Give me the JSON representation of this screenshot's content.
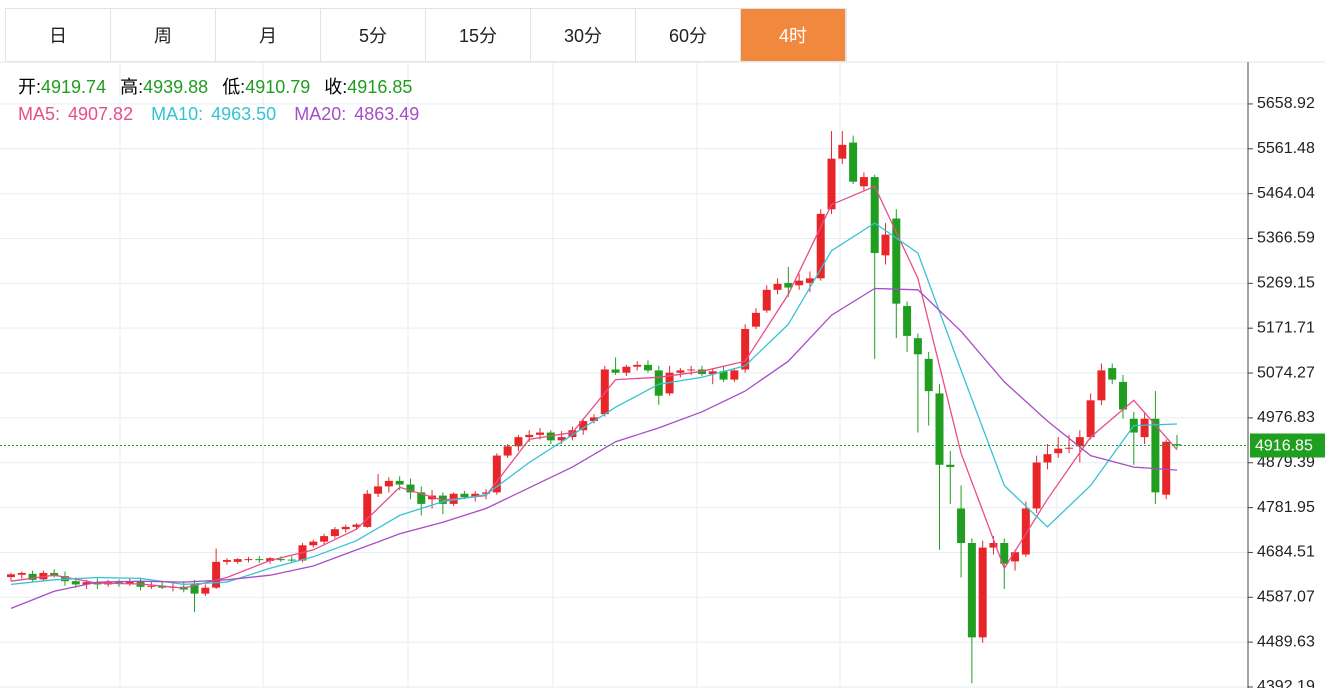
{
  "tabs": [
    "日",
    "周",
    "月",
    "5分",
    "15分",
    "30分",
    "60分",
    "4时"
  ],
  "chart_data": {
    "type": "candlestick",
    "ohlc_labels": [
      "开:",
      "高:",
      "低:",
      "收:"
    ],
    "up_color": "#e8262a",
    "down_color": "#1f9e1f",
    "open": [
      4631,
      4636,
      4638,
      4626,
      4640,
      4633,
      4622,
      4615,
      4620,
      4615,
      4620,
      4617,
      4622,
      4610,
      4612,
      4608,
      4610,
      4615,
      4595,
      4608,
      4664,
      4664,
      4668,
      4670,
      4666,
      4670,
      4669,
      4667,
      4700,
      4708,
      4720,
      4735,
      4740,
      4740,
      4812,
      4828,
      4840,
      4832,
      4815,
      4800,
      4808,
      4790,
      4812,
      4805,
      4812,
      4815,
      4895,
      4915,
      4935,
      4940,
      4945,
      4928,
      4935,
      4950,
      4970,
      4985,
      5082,
      5075,
      5088,
      5092,
      5080,
      5030,
      5075,
      5080,
      5082,
      5072,
      5078,
      5060,
      5082,
      5175,
      5210,
      5255,
      5270,
      5265,
      5270,
      5280,
      5430,
      5540,
      5575,
      5480,
      5500,
      5330,
      5410,
      5220,
      5150,
      5105,
      5030,
      4875,
      4780,
      4705,
      4500,
      4695,
      4705,
      4665,
      4680,
      4780,
      4880,
      4900,
      4910,
      4915,
      4935,
      5015,
      5085,
      5055,
      4975,
      4935,
      4975,
      4810,
      4919.74
    ],
    "high": [
      4640,
      4643,
      4645,
      4645,
      4648,
      4643,
      4630,
      4625,
      4628,
      4625,
      4626,
      4628,
      4630,
      4620,
      4620,
      4618,
      4622,
      4625,
      4615,
      4693,
      4672,
      4672,
      4675,
      4677,
      4674,
      4676,
      4676,
      4705,
      4712,
      4725,
      4740,
      4745,
      4748,
      4820,
      4855,
      4848,
      4850,
      4845,
      4828,
      4820,
      4815,
      4815,
      4818,
      4818,
      4822,
      4900,
      4920,
      4940,
      4950,
      4955,
      4950,
      4948,
      4958,
      4975,
      4985,
      5090,
      5108,
      5092,
      5100,
      5102,
      5090,
      5090,
      5085,
      5090,
      5090,
      5085,
      5090,
      5085,
      5180,
      5215,
      5265,
      5280,
      5305,
      5290,
      5295,
      5430,
      5600,
      5600,
      5590,
      5510,
      5505,
      5400,
      5430,
      5230,
      5160,
      5120,
      5050,
      4905,
      4830,
      4715,
      4710,
      4720,
      4715,
      4690,
      4795,
      4895,
      4920,
      4935,
      4940,
      4950,
      5030,
      5095,
      5095,
      5070,
      4990,
      4990,
      5035,
      4930,
      4939.88
    ],
    "low": [
      4622,
      4628,
      4620,
      4622,
      4630,
      4612,
      4608,
      4605,
      4605,
      4610,
      4610,
      4612,
      4602,
      4605,
      4605,
      4600,
      4598,
      4555,
      4590,
      4605,
      4658,
      4660,
      4663,
      4662,
      4660,
      4664,
      4662,
      4663,
      4695,
      4700,
      4715,
      4728,
      4734,
      4738,
      4805,
      4815,
      4820,
      4800,
      4765,
      4780,
      4768,
      4785,
      4800,
      4795,
      4800,
      4810,
      4890,
      4905,
      4925,
      4930,
      4920,
      4920,
      4928,
      4940,
      4965,
      4980,
      5070,
      5068,
      5080,
      5075,
      5005,
      5025,
      5065,
      5070,
      5068,
      5050,
      5055,
      5055,
      5075,
      5170,
      5205,
      5245,
      5240,
      5255,
      5250,
      5275,
      5420,
      5528,
      5485,
      5470,
      5105,
      5310,
      5150,
      5120,
      4945,
      4960,
      4690,
      4790,
      4630,
      4400,
      4488,
      4680,
      4605,
      4645,
      4675,
      4770,
      4865,
      4890,
      4900,
      4880,
      4930,
      5005,
      5050,
      4975,
      4875,
      4920,
      4790,
      4800,
      4910.79
    ],
    "close": [
      4637,
      4640,
      4625,
      4640,
      4633,
      4622,
      4615,
      4620,
      4615,
      4620,
      4617,
      4622,
      4610,
      4612,
      4608,
      4610,
      4604,
      4595,
      4608,
      4664,
      4668,
      4670,
      4670,
      4668,
      4672,
      4669,
      4667,
      4700,
      4708,
      4720,
      4735,
      4740,
      4745,
      4812,
      4828,
      4840,
      4832,
      4815,
      4790,
      4808,
      4790,
      4812,
      4805,
      4812,
      4815,
      4895,
      4915,
      4935,
      4940,
      4945,
      4928,
      4935,
      4950,
      4970,
      4978,
      5082,
      5075,
      5088,
      5092,
      5080,
      5025,
      5075,
      5080,
      5082,
      5072,
      5078,
      5060,
      5080,
      5170,
      5205,
      5255,
      5268,
      5260,
      5275,
      5280,
      5420,
      5540,
      5570,
      5490,
      5500,
      5335,
      5375,
      5225,
      5155,
      5115,
      5035,
      4875,
      4870,
      4705,
      4500,
      4695,
      4705,
      4660,
      4685,
      4780,
      4880,
      4898,
      4910,
      4912,
      4935,
      5015,
      5080,
      5060,
      4995,
      4945,
      4975,
      4815,
      4925,
      4916.85
    ],
    "series": [
      {
        "name": "MA5:",
        "color": "#e84d8a",
        "value_label": "4907.82",
        "x": [
          0,
          4,
          8,
          12,
          16,
          20,
          24,
          28,
          32,
          36,
          40,
          44,
          48,
          52,
          56,
          60,
          64,
          68,
          72,
          76,
          80,
          84,
          88,
          92,
          96,
          100,
          104,
          108
        ],
        "values": [
          4622,
          4635,
          4618,
          4616,
          4607,
          4630,
          4667,
          4690,
          4735,
          4826,
          4798,
          4808,
          4930,
          4945,
          5060,
          5065,
          5078,
          5100,
          5245,
          5440,
          5480,
          5280,
          4900,
          4650,
          4800,
          4935,
          5015,
          4907.82
        ]
      },
      {
        "name": "MA10:",
        "color": "#35c3d3",
        "value_label": "4963.50",
        "x": [
          0,
          4,
          8,
          12,
          16,
          20,
          24,
          28,
          32,
          36,
          40,
          44,
          48,
          52,
          56,
          60,
          64,
          68,
          72,
          76,
          80,
          84,
          88,
          92,
          96,
          100,
          104,
          108
        ],
        "values": [
          4615,
          4625,
          4630,
          4628,
          4615,
          4620,
          4650,
          4675,
          4710,
          4765,
          4795,
          4810,
          4880,
          4940,
          5000,
          5050,
          5065,
          5090,
          5180,
          5340,
          5400,
          5335,
          5080,
          4830,
          4740,
          4830,
          4960,
          4963.5
        ]
      },
      {
        "name": "MA20:",
        "color": "#a64dc8",
        "value_label": "4863.49",
        "x": [
          0,
          4,
          8,
          12,
          16,
          20,
          24,
          28,
          32,
          36,
          40,
          44,
          48,
          52,
          56,
          60,
          64,
          68,
          72,
          76,
          80,
          84,
          88,
          92,
          96,
          100,
          104,
          108
        ],
        "values": [
          4563,
          4600,
          4620,
          4622,
          4620,
          4625,
          4635,
          4655,
          4690,
          4725,
          4750,
          4780,
          4825,
          4870,
          4925,
          4955,
          4990,
          5035,
          5100,
          5200,
          5258,
          5255,
          5165,
          5055,
          4970,
          4895,
          4870,
          4863.49
        ]
      }
    ],
    "ylim": [
      4390,
      5750
    ],
    "yticks": [
      5658.92,
      5561.48,
      5464.04,
      5366.59,
      5269.15,
      5171.71,
      5074.27,
      4976.83,
      4879.39,
      4781.95,
      4684.51,
      4587.07,
      4489.63,
      4392.19
    ],
    "grid": true
  }
}
